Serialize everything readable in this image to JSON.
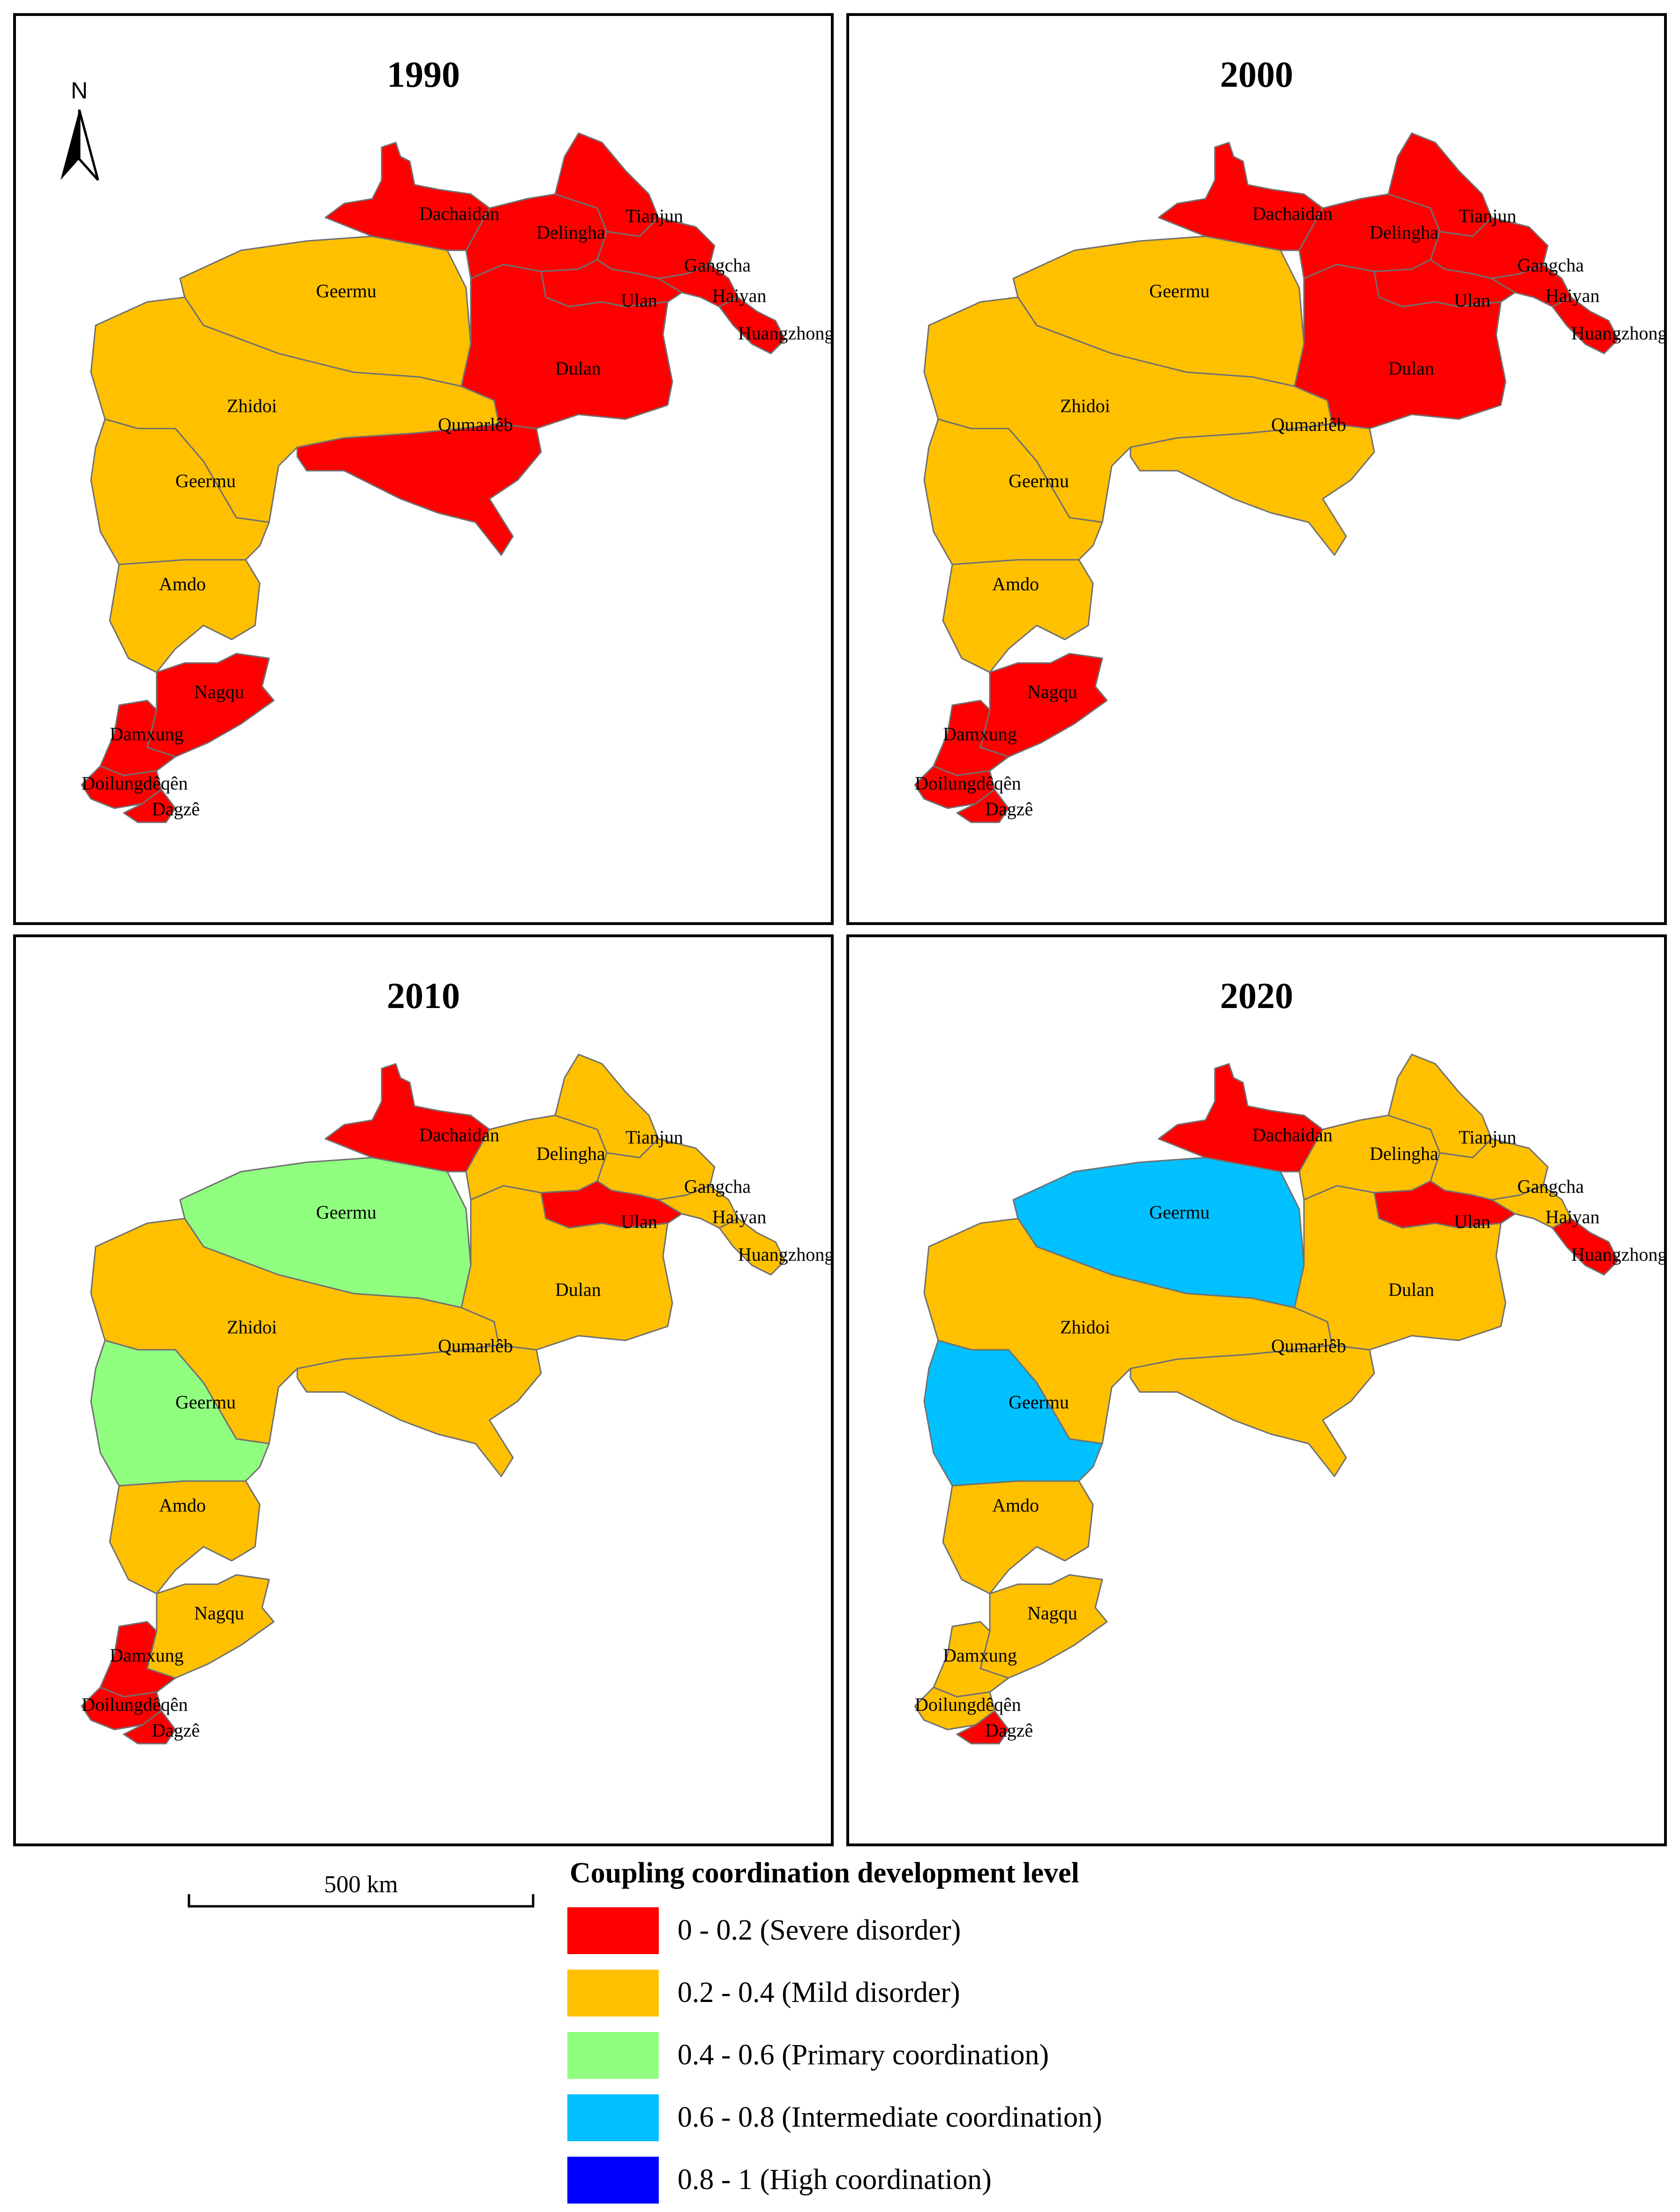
{
  "colors": {
    "severe": "#ff0000",
    "mild": "#ffc000",
    "primary": "#90ff80",
    "intermediate": "#00c0ff",
    "high": "#0000ff",
    "border": "#707070"
  },
  "north_arrow": {
    "letter": "N",
    "icon": "north-arrow-icon"
  },
  "scale_bar": {
    "label": "500 km"
  },
  "legend": {
    "title": "Coupling coordination development level",
    "items": [
      {
        "level": "severe",
        "label": "0 - 0.2 (Severe disorder)"
      },
      {
        "level": "mild",
        "label": "0.2 - 0.4 (Mild disorder)"
      },
      {
        "level": "primary",
        "label": "0.4 - 0.6 (Primary coordination)"
      },
      {
        "level": "intermediate",
        "label": "0.6 - 0.8 (Intermediate coordination)"
      },
      {
        "level": "high",
        "label": "0.8 - 1 (High coordination)"
      }
    ]
  },
  "region_names": {
    "dachaidan": "Dachaidan",
    "delingha": "Delingha",
    "tianjun": "Tianjun",
    "gangcha": "Gangcha",
    "haiyan": "Haiyan",
    "huangzhong": "Huangzhong",
    "ulan": "Ulan",
    "dulan": "Dulan",
    "geermu_n": "Geermu",
    "zhidoi": "Zhidoi",
    "qumarleb": "Qumarlêb",
    "geermu_s": "Geermu",
    "amdo": "Amdo",
    "nagqu": "Nagqu",
    "damxung": "Damxung",
    "doilungdeqen": "Doilungdêqên",
    "dagze": "Dagzê"
  },
  "panels": [
    {
      "year": "1990",
      "levels": {
        "dachaidan": "severe",
        "delingha": "severe",
        "tianjun": "severe",
        "gangcha": "severe",
        "haiyan": "severe",
        "huangzhong": "severe",
        "ulan": "severe",
        "dulan": "severe",
        "geermu_n": "mild",
        "zhidoi": "mild",
        "qumarleb": "severe",
        "geermu_s": "mild",
        "amdo": "mild",
        "nagqu": "severe",
        "damxung": "severe",
        "doilungdeqen": "severe",
        "dagze": "severe"
      }
    },
    {
      "year": "2000",
      "levels": {
        "dachaidan": "severe",
        "delingha": "severe",
        "tianjun": "severe",
        "gangcha": "severe",
        "haiyan": "severe",
        "huangzhong": "severe",
        "ulan": "severe",
        "dulan": "severe",
        "geermu_n": "mild",
        "zhidoi": "mild",
        "qumarleb": "mild",
        "geermu_s": "mild",
        "amdo": "mild",
        "nagqu": "severe",
        "damxung": "severe",
        "doilungdeqen": "severe",
        "dagze": "severe"
      }
    },
    {
      "year": "2010",
      "levels": {
        "dachaidan": "severe",
        "delingha": "mild",
        "tianjun": "mild",
        "gangcha": "mild",
        "haiyan": "mild",
        "huangzhong": "mild",
        "ulan": "severe",
        "dulan": "mild",
        "geermu_n": "primary",
        "zhidoi": "mild",
        "qumarleb": "mild",
        "geermu_s": "primary",
        "amdo": "mild",
        "nagqu": "mild",
        "damxung": "severe",
        "doilungdeqen": "severe",
        "dagze": "severe"
      }
    },
    {
      "year": "2020",
      "levels": {
        "dachaidan": "severe",
        "delingha": "mild",
        "tianjun": "mild",
        "gangcha": "mild",
        "haiyan": "mild",
        "huangzhong": "severe",
        "ulan": "severe",
        "dulan": "mild",
        "geermu_n": "intermediate",
        "zhidoi": "mild",
        "qumarleb": "mild",
        "geermu_s": "intermediate",
        "amdo": "mild",
        "nagqu": "mild",
        "damxung": "mild",
        "doilungdeqen": "mild",
        "dagze": "severe"
      }
    }
  ]
}
